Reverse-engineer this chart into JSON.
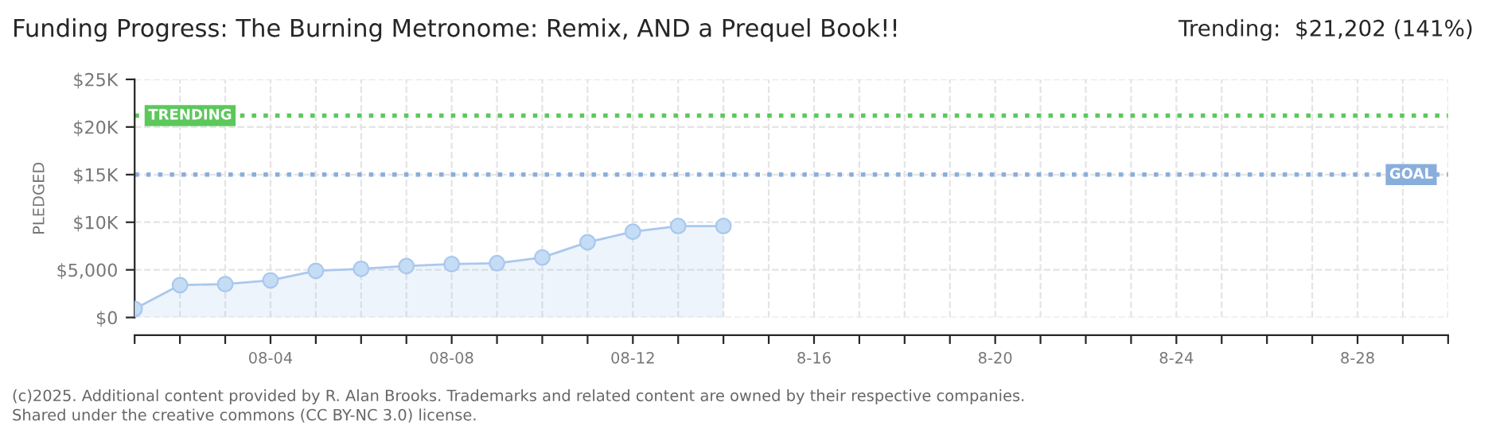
{
  "chart_data": {
    "type": "area",
    "title": "Funding Progress: The Burning Metronome: Remix, AND a Prequel Book!!",
    "subtitle": "Trending:  $21,202 (141%)",
    "ylabel": "PLEDGED",
    "categories": [
      null,
      null,
      null,
      "08-04",
      null,
      null,
      null,
      "08-08",
      null,
      null,
      null,
      "08-12",
      null,
      null,
      null,
      "8-16",
      null,
      null,
      null,
      "8-20",
      null,
      null,
      null,
      "8-24",
      null,
      null,
      null,
      "8-28",
      null,
      null
    ],
    "series": [
      {
        "color": "#a9c8ee",
        "values": [
          900,
          3400,
          3500,
          3900,
          4900,
          5100,
          5400,
          5600,
          5700,
          6300,
          7900,
          9000,
          9600,
          9600,
          null,
          null,
          null,
          null,
          null,
          null,
          null,
          null,
          null,
          null,
          null,
          null,
          null,
          null,
          null,
          null
        ]
      }
    ],
    "ylim": [
      0,
      25000
    ],
    "yticks": [
      {
        "value": 0,
        "label": "$0"
      },
      {
        "value": 5000,
        "label": "$5,000"
      },
      {
        "value": 10000,
        "label": "$10K"
      },
      {
        "value": 15000,
        "label": "$15K"
      },
      {
        "value": 20000,
        "label": "$20K"
      },
      {
        "value": 25000,
        "label": "$25K"
      }
    ],
    "ref_lines": [
      {
        "axis": "y",
        "value": 21202,
        "label": "TRENDING",
        "color": "#5cc85c",
        "line_style": "dotted"
      },
      {
        "axis": "y",
        "value": 15000,
        "label": "GOAL",
        "color": "#8aaedc",
        "line_style": "dotted"
      }
    ],
    "annotations": [
      "(c)2025. Additional content provided by R. Alan Brooks. Trademarks and related content are owned by their respective companies.",
      "Shared under the creative commons (CC BY-NC 3.0) license."
    ],
    "grid": true,
    "marker": "circle",
    "line_style": "solid",
    "legend": false
  }
}
